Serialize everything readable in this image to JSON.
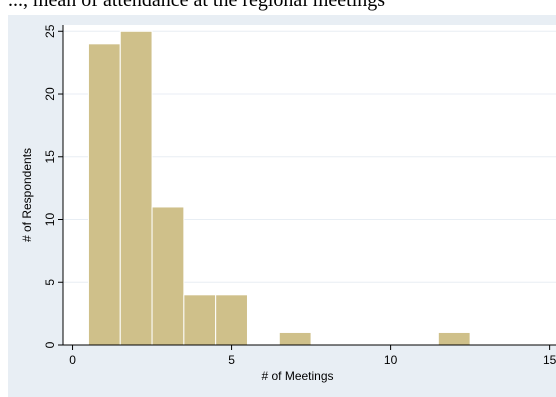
{
  "top_text": "..., mean of attendance at the regional meetings",
  "colors": {
    "panel_background": "#e8eef4",
    "plot_background": "#ffffff",
    "bar_fill": "#cfc08a",
    "bar_stroke": "#ffffff",
    "grid": "#e8eef4",
    "axis": "#000000"
  },
  "chart_data": {
    "type": "bar",
    "histogram": true,
    "bin_width": 1,
    "bins": [
      {
        "x0": 0.5,
        "x1": 1.5,
        "value": 24
      },
      {
        "x0": 1.5,
        "x1": 2.5,
        "value": 25
      },
      {
        "x0": 2.5,
        "x1": 3.5,
        "value": 11
      },
      {
        "x0": 3.5,
        "x1": 4.5,
        "value": 4
      },
      {
        "x0": 4.5,
        "x1": 5.5,
        "value": 4
      },
      {
        "x0": 6.5,
        "x1": 7.5,
        "value": 1
      },
      {
        "x0": 11.5,
        "x1": 12.5,
        "value": 1
      }
    ],
    "xlabel": "# of Meetings",
    "ylabel": "# of Respondents",
    "xlim": [
      -0.3,
      15.2
    ],
    "ylim": [
      0,
      25.5
    ],
    "xticks": [
      "0",
      "5",
      "10",
      "15"
    ],
    "yticks": [
      "0",
      "5",
      "10",
      "15",
      "20",
      "25"
    ],
    "grid": true
  }
}
